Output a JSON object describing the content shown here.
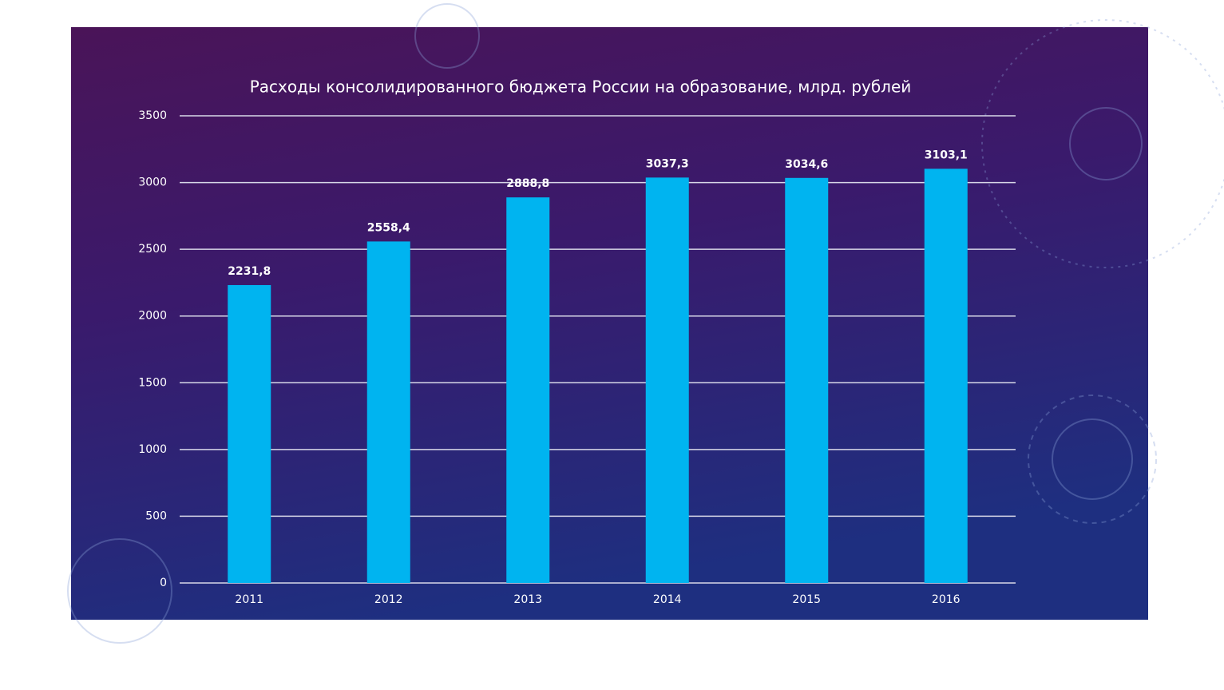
{
  "chart_data": {
    "type": "bar",
    "title": "Расходы консолидированного бюджета России на образование, млрд. рублей",
    "categories": [
      "2011",
      "2012",
      "2013",
      "2014",
      "2015",
      "2016"
    ],
    "values": [
      2231.8,
      2558.4,
      2888.8,
      3037.3,
      3034.6,
      3103.1
    ],
    "value_labels": [
      "2231,8",
      "2558,4",
      "2888,8",
      "3037,3",
      "3034,6",
      "3103,1"
    ],
    "color": "#00b4f0",
    "ylim": [
      0,
      3500
    ],
    "yticks": [
      0,
      500,
      1000,
      1500,
      2000,
      2500,
      3000,
      3500
    ],
    "grid": true
  }
}
